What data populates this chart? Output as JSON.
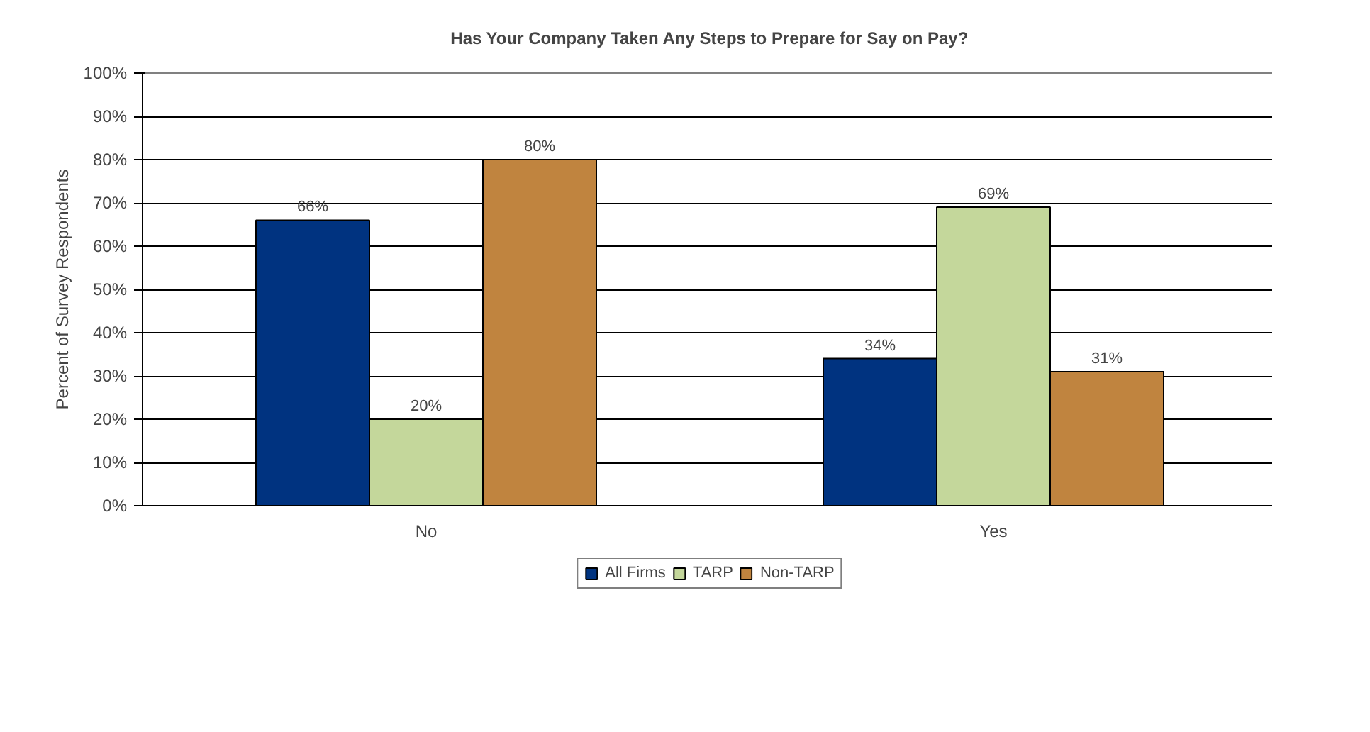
{
  "chart_data": {
    "type": "bar",
    "title": "Has Your Company Taken Any Steps to Prepare for Say on Pay?",
    "ylabel": "Percent of Survey Respondents",
    "categories": [
      "No",
      "Yes"
    ],
    "series": [
      {
        "name": "All Firms",
        "color": "#003380",
        "values": [
          66,
          34
        ],
        "value_labels": [
          "66%",
          "34%"
        ]
      },
      {
        "name": "TARP",
        "color": "#c4d79b",
        "values": [
          20,
          69
        ],
        "value_labels": [
          "20%",
          "69%"
        ]
      },
      {
        "name": "Non-TARP",
        "color": "#c0843f",
        "values": [
          80,
          31
        ],
        "value_labels": [
          "80%",
          "31%"
        ]
      }
    ],
    "ylim": [
      0,
      100
    ],
    "yticks": [
      {
        "value": 0,
        "label": "0%"
      },
      {
        "value": 10,
        "label": "10%"
      },
      {
        "value": 20,
        "label": "20%"
      },
      {
        "value": 30,
        "label": "30%"
      },
      {
        "value": 40,
        "label": "40%"
      },
      {
        "value": 50,
        "label": "50%"
      },
      {
        "value": 60,
        "label": "60%"
      },
      {
        "value": 70,
        "label": "70%"
      },
      {
        "value": 80,
        "label": "80%"
      },
      {
        "value": 90,
        "label": "90%"
      },
      {
        "value": 100,
        "label": "100%"
      }
    ],
    "grid": "y",
    "legend": "bottom"
  }
}
